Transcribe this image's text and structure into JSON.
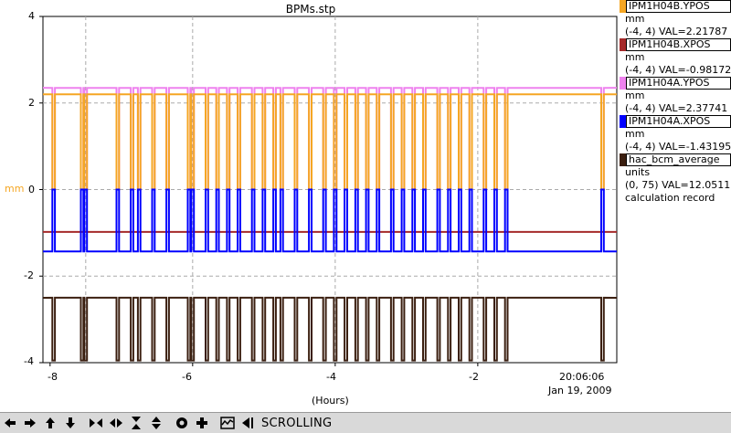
{
  "title": "BPMs.stp",
  "y_axis_label": "mm",
  "x_axis_label": "(Hours)",
  "y_ticks": [
    "4",
    "2",
    "0",
    "-2",
    "-4"
  ],
  "x_ticks": [
    "-8",
    "-6",
    "-4",
    "-2"
  ],
  "current_time": "20:06:06",
  "current_date": "Jan 19, 2009",
  "legend": [
    {
      "name": "IPM1H04B.YPOS",
      "units": "mm",
      "info": "(-4, 4) VAL=2.21787",
      "color": "#f5a623"
    },
    {
      "name": "IPM1H04B.XPOS",
      "units": "mm",
      "info": "(-4, 4) VAL=-0.98172",
      "color": "#a52a2a"
    },
    {
      "name": "IPM1H04A.YPOS",
      "units": "mm",
      "info": "(-4, 4) VAL=2.37741",
      "color": "#ee82ee"
    },
    {
      "name": "IPM1H04A.XPOS",
      "units": "mm",
      "info": "(-4, 4) VAL=-1.43195",
      "color": "#0000ff"
    },
    {
      "name": "hac_bcm_average",
      "units": "units",
      "info": "(0, 75) VAL=12.0511",
      "extra": "calculation record",
      "color": "#3b1f10"
    }
  ],
  "toolbar": {
    "mode_label": "SCROLLING",
    "buttons": [
      "arrow-left-icon",
      "arrow-right-icon",
      "arrow-up-icon",
      "arrow-down-icon",
      "zoom-in-x-icon",
      "zoom-out-x-icon",
      "zoom-in-y-icon",
      "zoom-out-y-icon",
      "config-icon",
      "add-icon",
      "auto-scale-icon",
      "scroll-mode-icon"
    ]
  },
  "chart_data": {
    "type": "line",
    "xlabel": "(Hours)",
    "ylabel": "mm",
    "xlim": [
      -8.1,
      -0.05
    ],
    "ylim": [
      -4,
      4
    ],
    "grid": true,
    "series": [
      {
        "name": "IPM1H04A.YPOS",
        "base": 2.35,
        "dip": 0,
        "color": "#ee82ee"
      },
      {
        "name": "IPM1H04B.YPOS",
        "base": 2.2,
        "dip": 0,
        "color": "#f5a623"
      },
      {
        "name": "IPM1H04B.XPOS",
        "base": -0.98,
        "dip": -0.98,
        "color": "#a52a2a"
      },
      {
        "name": "IPM1H04A.XPOS",
        "base": -1.43,
        "dip": 0,
        "color": "#0000ff"
      },
      {
        "name": "hac_bcm_average",
        "base": -2.5,
        "dip": -3.95,
        "color": "#3b1f10"
      }
    ],
    "beam_off_times": [
      -7.95,
      -7.55,
      -7.5,
      -7.05,
      -6.85,
      -6.75,
      -6.55,
      -6.35,
      -6.05,
      -6.0,
      -5.8,
      -5.65,
      -5.5,
      -5.35,
      -5.15,
      -5.0,
      -4.85,
      -4.75,
      -4.55,
      -4.35,
      -4.15,
      -4.0,
      -3.85,
      -3.7,
      -3.55,
      -3.4,
      -3.2,
      -3.05,
      -2.9,
      -2.75,
      -2.55,
      -2.4,
      -2.25,
      -2.1,
      -1.9,
      -1.75,
      -1.6,
      -0.25
    ]
  }
}
